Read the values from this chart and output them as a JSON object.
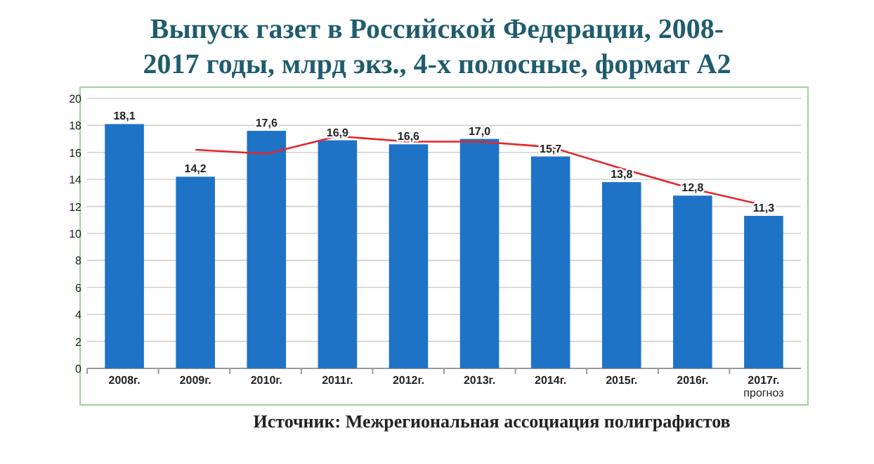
{
  "chart_data": {
    "type": "bar",
    "title": "Выпуск газет в Российской Федерации, 2008-2017 годы, млрд экз., 4-х полосные, формат А2",
    "categories": [
      "2008г.",
      "2009г.",
      "2010г.",
      "2011г.",
      "2012г.",
      "2013г.",
      "2014г.",
      "2015г.",
      "2016г.",
      "2017г. прогноз"
    ],
    "series": [
      {
        "color": "#1f73c6",
        "values": [
          18.1,
          14.2,
          17.6,
          16.9,
          16.6,
          17.0,
          15.7,
          13.8,
          12.8,
          11.3
        ],
        "value_labels": [
          "18,1",
          "14,2",
          "17,6",
          "16,9",
          "16,6",
          "17,0",
          "15,7",
          "13,8",
          "12,8",
          "11,3"
        ]
      },
      {
        "type": "line",
        "color": "#e3262b",
        "values": [
          null,
          16.2,
          15.9,
          17.2,
          16.8,
          16.8,
          16.4,
          14.8,
          13.3,
          12.1
        ]
      }
    ],
    "ylim": [
      0,
      20
    ],
    "yticks": [
      0,
      2,
      4,
      6,
      8,
      10,
      12,
      14,
      16,
      18,
      20
    ],
    "grid": "y",
    "marker": "none",
    "line_style": "solid",
    "annotations": [
      "Источник: Межрегиональная ассоциация полиграфистов"
    ]
  }
}
